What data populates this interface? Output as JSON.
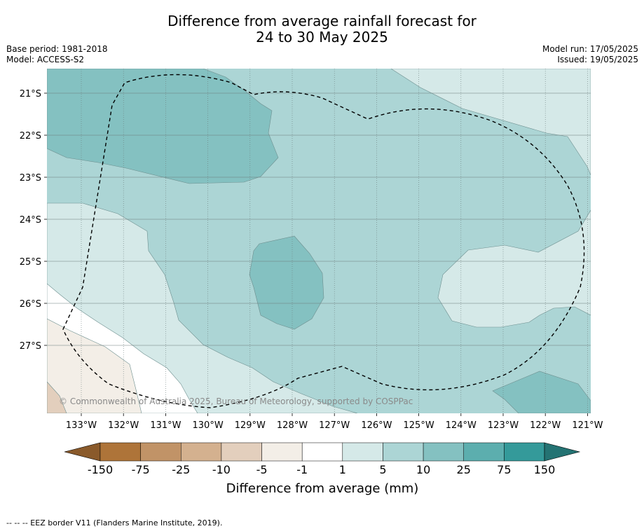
{
  "title_line1": "Difference from average rainfall forecast for",
  "title_line2": "24 to 30 May 2025",
  "base_period": "Base period: 1981-2018",
  "model": "Model: ACCESS-S2",
  "model_run": "Model run: 17/05/2025",
  "issued": "Issued: 19/05/2025",
  "credit": "© Commonwealth of Australia 2025, Bureau of Meteorology, supported by COSPPac",
  "lon_labels": [
    "133°W",
    "132°W",
    "131°W",
    "130°W",
    "129°W",
    "128°W",
    "127°W",
    "126°W",
    "125°W",
    "124°W",
    "123°W",
    "122°W",
    "121°W"
  ],
  "lat_labels": [
    "21°S",
    "22°S",
    "23°S",
    "24°S",
    "25°S",
    "26°S",
    "27°S"
  ],
  "colorbar": {
    "ticks": [
      "-150",
      "-75",
      "-25",
      "-10",
      "-5",
      "-1",
      "1",
      "5",
      "10",
      "25",
      "75",
      "150"
    ],
    "colors": [
      "#ae7439",
      "#c19367",
      "#d4b18f",
      "#e3cfbd",
      "#f3eee7",
      "#ffffff",
      "#d5e9e8",
      "#acd5d5",
      "#84c1c1",
      "#5caeae",
      "#349a9a"
    ],
    "low_extend_color": "#8a5a2b",
    "high_extend_color": "#247373",
    "label": "Difference from average (mm)"
  },
  "legend_note": "--  --  -- EEZ border V11 (Flanders Marine Institute, 2019)."
}
